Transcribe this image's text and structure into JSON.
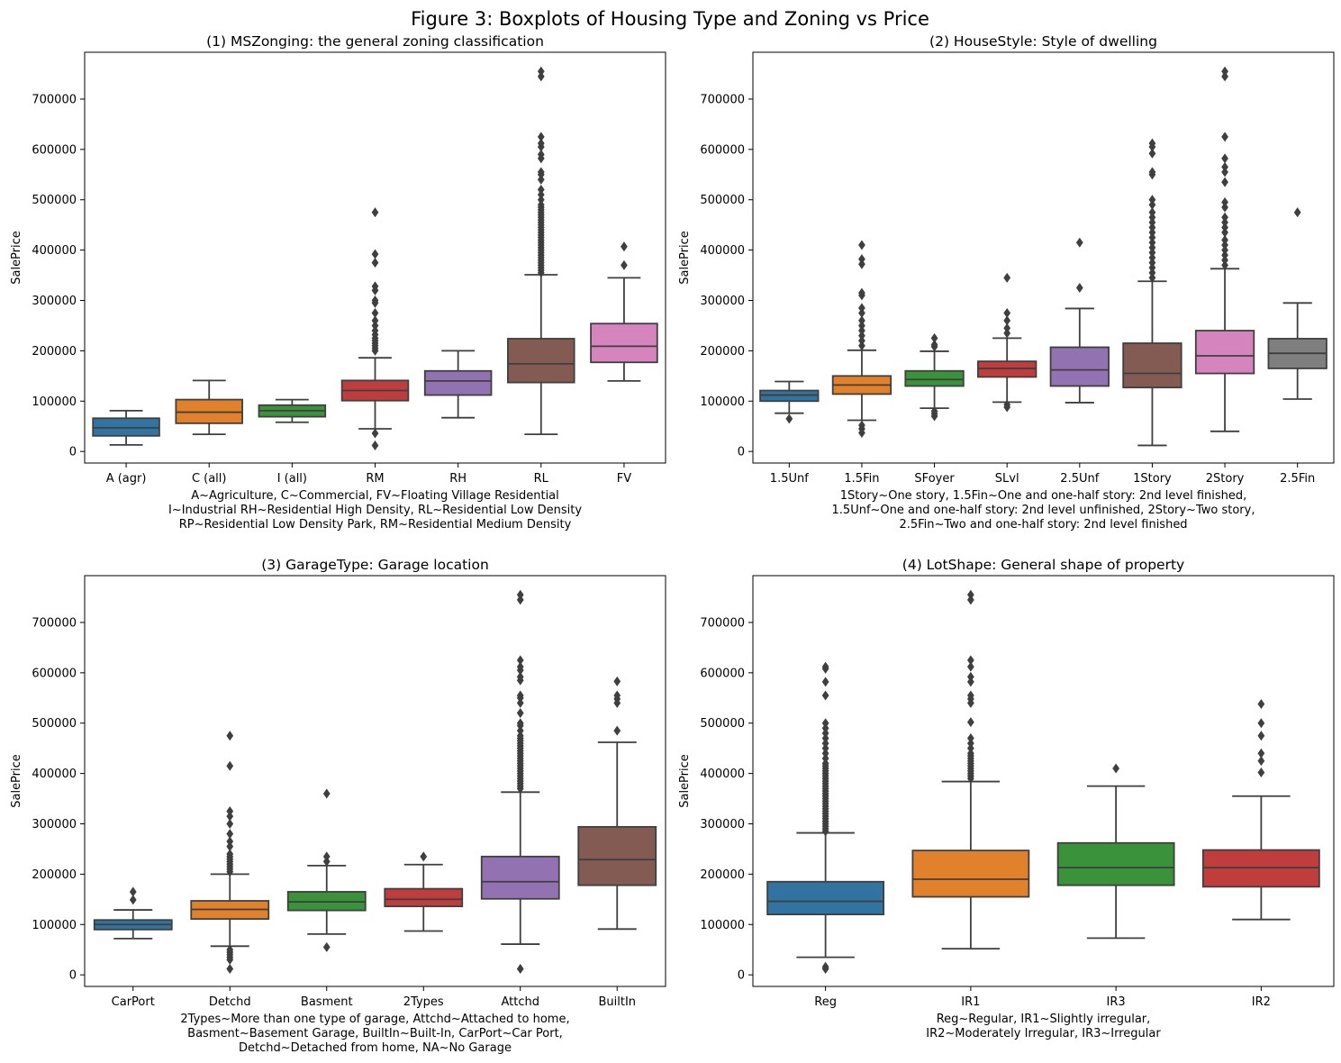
{
  "figure": {
    "title": "Figure 3: Boxplots of Housing Type and Zoning vs Price"
  },
  "chart_data": [
    {
      "type": "boxplot",
      "title": "(1) MSZonging: the general zoning classification",
      "ylabel": "SalePrice",
      "xlabel_lines": [
        "A~Agriculture, C~Commercial, FV~Floating Village Residential",
        "I~Industrial RH~Residential High Density, RL~Residential Low Density",
        "RP~Residential Low Density Park, RM~Residential Medium Density"
      ],
      "ylim": [
        -23000,
        793000
      ],
      "yticks": [
        0,
        100000,
        200000,
        300000,
        400000,
        500000,
        600000,
        700000
      ],
      "categories": [
        "A (agr)",
        "C (all)",
        "I (all)",
        "RM",
        "RH",
        "RL",
        "FV"
      ],
      "boxes": [
        {
          "name": "A (agr)",
          "color": "#3274a1",
          "whislo": 13000,
          "q1": 31000,
          "med": 47000,
          "q3": 66000,
          "whishi": 81000,
          "fliers": []
        },
        {
          "name": "C (all)",
          "color": "#e1812c",
          "whislo": 34000,
          "q1": 56000,
          "med": 78000,
          "q3": 103000,
          "whishi": 141000,
          "fliers": []
        },
        {
          "name": "I (all)",
          "color": "#3a923a",
          "whislo": 58000,
          "q1": 69000,
          "med": 81000,
          "q3": 92000,
          "whishi": 103000,
          "fliers": []
        },
        {
          "name": "RM",
          "color": "#c03d3e",
          "whislo": 45000,
          "q1": 101000,
          "med": 121000,
          "q3": 141000,
          "whishi": 186000,
          "fliers": [
            12000,
            36000,
            200000,
            205000,
            210000,
            215000,
            220000,
            225000,
            232000,
            240000,
            250000,
            260000,
            275000,
            295000,
            300000,
            320000,
            328000,
            375000,
            392000,
            475000
          ]
        },
        {
          "name": "RH",
          "color": "#9372b2",
          "whislo": 67000,
          "q1": 112000,
          "med": 140000,
          "q3": 160000,
          "whishi": 200000,
          "fliers": []
        },
        {
          "name": "RL",
          "color": "#845b53",
          "whislo": 34000,
          "q1": 137000,
          "med": 174000,
          "q3": 224000,
          "whishi": 351000,
          "fliers": [
            355000,
            360000,
            365000,
            370000,
            375000,
            380000,
            385000,
            390000,
            395000,
            400000,
            405000,
            410000,
            415000,
            420000,
            425000,
            430000,
            435000,
            440000,
            445000,
            450000,
            455000,
            460000,
            465000,
            470000,
            475000,
            480000,
            485000,
            490000,
            500000,
            510000,
            520000,
            540000,
            550000,
            555000,
            582000,
            590000,
            605000,
            612000,
            625000,
            745000,
            755000
          ]
        },
        {
          "name": "FV",
          "color": "#d684bd",
          "whislo": 140000,
          "q1": 177000,
          "med": 209000,
          "q3": 254000,
          "whishi": 345000,
          "fliers": [
            370000,
            407000
          ]
        }
      ]
    },
    {
      "type": "boxplot",
      "title": "(2) HouseStyle: Style of dwelling",
      "ylabel": "SalePrice",
      "xlabel_lines": [
        "1Story~One story, 1.5Fin~One and one-half story: 2nd level finished,",
        "1.5Unf~One and one-half story: 2nd level unfinished, 2Story~Two story,",
        "2.5Fin~Two and one-half story: 2nd level finished"
      ],
      "ylim": [
        -23000,
        793000
      ],
      "yticks": [
        0,
        100000,
        200000,
        300000,
        400000,
        500000,
        600000,
        700000
      ],
      "categories": [
        "1.5Unf",
        "1.5Fin",
        "SFoyer",
        "SLvl",
        "2.5Unf",
        "1Story",
        "2Story",
        "2.5Fin"
      ],
      "boxes": [
        {
          "name": "1.5Unf",
          "color": "#3274a1",
          "whislo": 76000,
          "q1": 100000,
          "med": 112000,
          "q3": 121000,
          "whishi": 139000,
          "fliers": [
            65000
          ]
        },
        {
          "name": "1.5Fin",
          "color": "#e1812c",
          "whislo": 62000,
          "q1": 114000,
          "med": 132000,
          "q3": 150000,
          "whishi": 201000,
          "fliers": [
            37000,
            45000,
            52000,
            210000,
            220000,
            230000,
            240000,
            250000,
            260000,
            275000,
            285000,
            310000,
            315000,
            372000,
            382000,
            410000
          ]
        },
        {
          "name": "SFoyer",
          "color": "#3a923a",
          "whislo": 86000,
          "q1": 130000,
          "med": 143000,
          "q3": 160000,
          "whishi": 199000,
          "fliers": [
            70000,
            75000,
            80000,
            208000,
            212000,
            225000
          ]
        },
        {
          "name": "SLvl",
          "color": "#c03d3e",
          "whislo": 98000,
          "q1": 148000,
          "med": 165000,
          "q3": 179000,
          "whishi": 225000,
          "fliers": [
            88000,
            93000,
            235000,
            245000,
            260000,
            275000,
            345000
          ]
        },
        {
          "name": "2.5Unf",
          "color": "#9372b2",
          "whislo": 97000,
          "q1": 130000,
          "med": 162000,
          "q3": 207000,
          "whishi": 284000,
          "fliers": [
            325000,
            415000
          ]
        },
        {
          "name": "1Story",
          "color": "#845b53",
          "whislo": 12000,
          "q1": 127000,
          "med": 155000,
          "q3": 215000,
          "whishi": 338000,
          "fliers": [
            345000,
            355000,
            365000,
            375000,
            385000,
            395000,
            405000,
            415000,
            425000,
            435000,
            445000,
            455000,
            465000,
            475000,
            490000,
            500000,
            550000,
            555000,
            592000,
            605000,
            612000
          ]
        },
        {
          "name": "2Story",
          "color": "#d684bd",
          "whislo": 40000,
          "q1": 155000,
          "med": 190000,
          "q3": 240000,
          "whishi": 363000,
          "fliers": [
            370000,
            380000,
            390000,
            400000,
            410000,
            420000,
            435000,
            445000,
            455000,
            465000,
            485000,
            495000,
            535000,
            555000,
            565000,
            582000,
            625000,
            745000,
            755000
          ]
        },
        {
          "name": "2.5Fin",
          "color": "#7f7f7f",
          "whislo": 104000,
          "q1": 165000,
          "med": 195000,
          "q3": 224000,
          "whishi": 295000,
          "fliers": [
            475000
          ]
        }
      ]
    },
    {
      "type": "boxplot",
      "title": "(3) GarageType: Garage location",
      "ylabel": "SalePrice",
      "xlabel_lines": [
        "2Types~More than one type of garage, Attchd~Attached to home,",
        "Basment~Basement Garage, BuiltIn~Built-In, CarPort~Car Port,",
        "Detchd~Detached from home, NA~No Garage"
      ],
      "ylim": [
        -23000,
        793000
      ],
      "yticks": [
        0,
        100000,
        200000,
        300000,
        400000,
        500000,
        600000,
        700000
      ],
      "categories": [
        "CarPort",
        "Detchd",
        "Basment",
        "2Types",
        "Attchd",
        "BuiltIn"
      ],
      "boxes": [
        {
          "name": "CarPort",
          "color": "#3274a1",
          "whislo": 72000,
          "q1": 90000,
          "med": 100000,
          "q3": 109000,
          "whishi": 129000,
          "fliers": [
            149000,
            165000
          ]
        },
        {
          "name": "Detchd",
          "color": "#e1812c",
          "whislo": 57000,
          "q1": 111000,
          "med": 130000,
          "q3": 147000,
          "whishi": 200000,
          "fliers": [
            12000,
            30000,
            35000,
            40000,
            45000,
            50000,
            205000,
            210000,
            215000,
            220000,
            225000,
            230000,
            235000,
            240000,
            255000,
            265000,
            280000,
            300000,
            315000,
            325000,
            415000,
            475000
          ]
        },
        {
          "name": "Basment",
          "color": "#3a923a",
          "whislo": 81000,
          "q1": 128000,
          "med": 145000,
          "q3": 165000,
          "whishi": 217000,
          "fliers": [
            55000,
            225000,
            235000,
            360000
          ]
        },
        {
          "name": "2Types",
          "color": "#c03d3e",
          "whislo": 87000,
          "q1": 136000,
          "med": 150000,
          "q3": 171000,
          "whishi": 219000,
          "fliers": [
            235000
          ]
        },
        {
          "name": "Attchd",
          "color": "#9372b2",
          "whislo": 61000,
          "q1": 151000,
          "med": 185000,
          "q3": 235000,
          "whishi": 363000,
          "fliers": [
            12000,
            370000,
            375000,
            380000,
            385000,
            390000,
            395000,
            400000,
            405000,
            410000,
            415000,
            420000,
            425000,
            430000,
            435000,
            440000,
            445000,
            450000,
            455000,
            460000,
            465000,
            470000,
            475000,
            485000,
            495000,
            500000,
            520000,
            540000,
            550000,
            555000,
            585000,
            592000,
            605000,
            612000,
            625000,
            745000,
            755000
          ]
        },
        {
          "name": "BuiltIn",
          "color": "#845b53",
          "whislo": 91000,
          "q1": 178000,
          "med": 229000,
          "q3": 294000,
          "whishi": 462000,
          "fliers": [
            485000,
            540000,
            548000,
            555000,
            583000
          ]
        }
      ]
    },
    {
      "type": "boxplot",
      "title": "(4) LotShape: General shape of property",
      "ylabel": "SalePrice",
      "xlabel_lines": [
        "Reg~Regular, IR1~Slightly irregular,",
        "IR2~Moderately Irregular, IR3~Irregular"
      ],
      "ylim": [
        -23000,
        793000
      ],
      "yticks": [
        0,
        100000,
        200000,
        300000,
        400000,
        500000,
        600000,
        700000
      ],
      "categories": [
        "Reg",
        "IR1",
        "IR3",
        "IR2"
      ],
      "boxes": [
        {
          "name": "Reg",
          "color": "#3274a1",
          "whislo": 35000,
          "q1": 120000,
          "med": 146000,
          "q3": 185000,
          "whishi": 282000,
          "fliers": [
            12000,
            16000,
            285000,
            290000,
            295000,
            300000,
            305000,
            310000,
            315000,
            320000,
            325000,
            330000,
            335000,
            340000,
            345000,
            350000,
            355000,
            360000,
            365000,
            370000,
            375000,
            380000,
            385000,
            390000,
            395000,
            400000,
            405000,
            410000,
            415000,
            420000,
            430000,
            440000,
            450000,
            460000,
            470000,
            480000,
            490000,
            500000,
            555000,
            582000,
            608000,
            612000
          ]
        },
        {
          "name": "IR1",
          "color": "#e1812c",
          "whislo": 52000,
          "q1": 155000,
          "med": 190000,
          "q3": 247000,
          "whishi": 384000,
          "fliers": [
            390000,
            395000,
            400000,
            405000,
            410000,
            415000,
            420000,
            425000,
            430000,
            435000,
            440000,
            450000,
            460000,
            470000,
            502000,
            540000,
            548000,
            555000,
            582000,
            592000,
            612000,
            625000,
            745000,
            755000
          ]
        },
        {
          "name": "IR3",
          "color": "#3a923a",
          "whislo": 73000,
          "q1": 178000,
          "med": 213000,
          "q3": 262000,
          "whishi": 375000,
          "fliers": [
            410000
          ]
        },
        {
          "name": "IR2",
          "color": "#c03d3e",
          "whislo": 110000,
          "q1": 175000,
          "med": 213000,
          "q3": 248000,
          "whishi": 355000,
          "fliers": [
            402000,
            425000,
            440000,
            475000,
            500000,
            538000
          ]
        }
      ]
    }
  ]
}
